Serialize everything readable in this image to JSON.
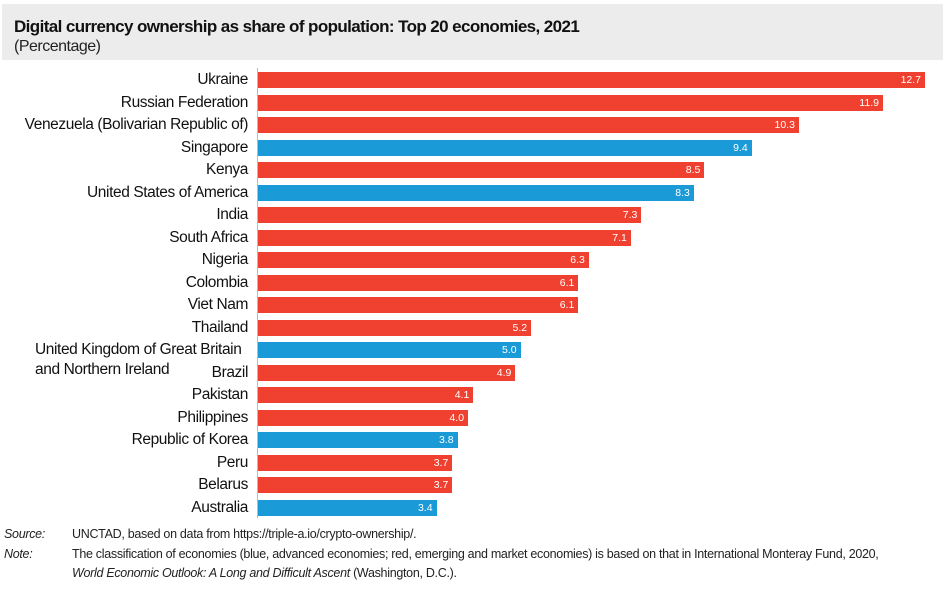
{
  "chart_data": {
    "type": "bar",
    "orientation": "horizontal",
    "title": "Digital currency ownership as share of population: Top 20 economies, 2021",
    "subtitle": "(Percentage)",
    "colors": {
      "advanced": "#1a9ad6",
      "emerging": "#f04130"
    },
    "categories": [
      "Ukraine",
      "Russian Federation",
      "Venezuela (Bolivarian Republic of)",
      "Singapore",
      "Kenya",
      "United States of America",
      "India",
      "South Africa",
      "Nigeria",
      "Colombia",
      "Viet Nam",
      "Thailand",
      "United Kingdom of Great Britain and Northern Ireland",
      "Brazil",
      "Pakistan",
      "Philippines",
      "Republic of Korea",
      "Peru",
      "Belarus",
      "Australia"
    ],
    "values": [
      12.7,
      11.9,
      10.3,
      9.4,
      8.5,
      8.3,
      7.3,
      7.1,
      6.3,
      6.1,
      6.1,
      5.2,
      5.0,
      4.9,
      4.1,
      4.0,
      3.8,
      3.7,
      3.7,
      3.4
    ],
    "value_labels": [
      "12.7",
      "11.9",
      "10.3",
      "9.4",
      "8.5",
      "8.3",
      "7.3",
      "7.1",
      "6.3",
      "6.1",
      "6.1",
      "5.2",
      "5.0",
      "4.9",
      "4.1",
      "4.0",
      "3.8",
      "3.7",
      "3.7",
      "3.4"
    ],
    "group": [
      "emerging",
      "emerging",
      "emerging",
      "advanced",
      "emerging",
      "advanced",
      "emerging",
      "emerging",
      "emerging",
      "emerging",
      "emerging",
      "emerging",
      "advanced",
      "emerging",
      "emerging",
      "emerging",
      "advanced",
      "emerging",
      "emerging",
      "advanced"
    ],
    "xlim": [
      0,
      12.7
    ],
    "grid": false
  },
  "notes": {
    "source_key": "Source:",
    "source_text": "UNCTAD, based on data from https://triple-a.io/crypto-ownership/.",
    "note_key": "Note:",
    "note_text_1": "The classification of economies (blue, advanced economies; red, emerging and market economies) is based on that in International Monteray Fund, 2020,",
    "note_text_2_italic": "World Economic Outlook: A Long and Difficult Ascent",
    "note_text_2_rest": " (Washington, D.C.)."
  }
}
